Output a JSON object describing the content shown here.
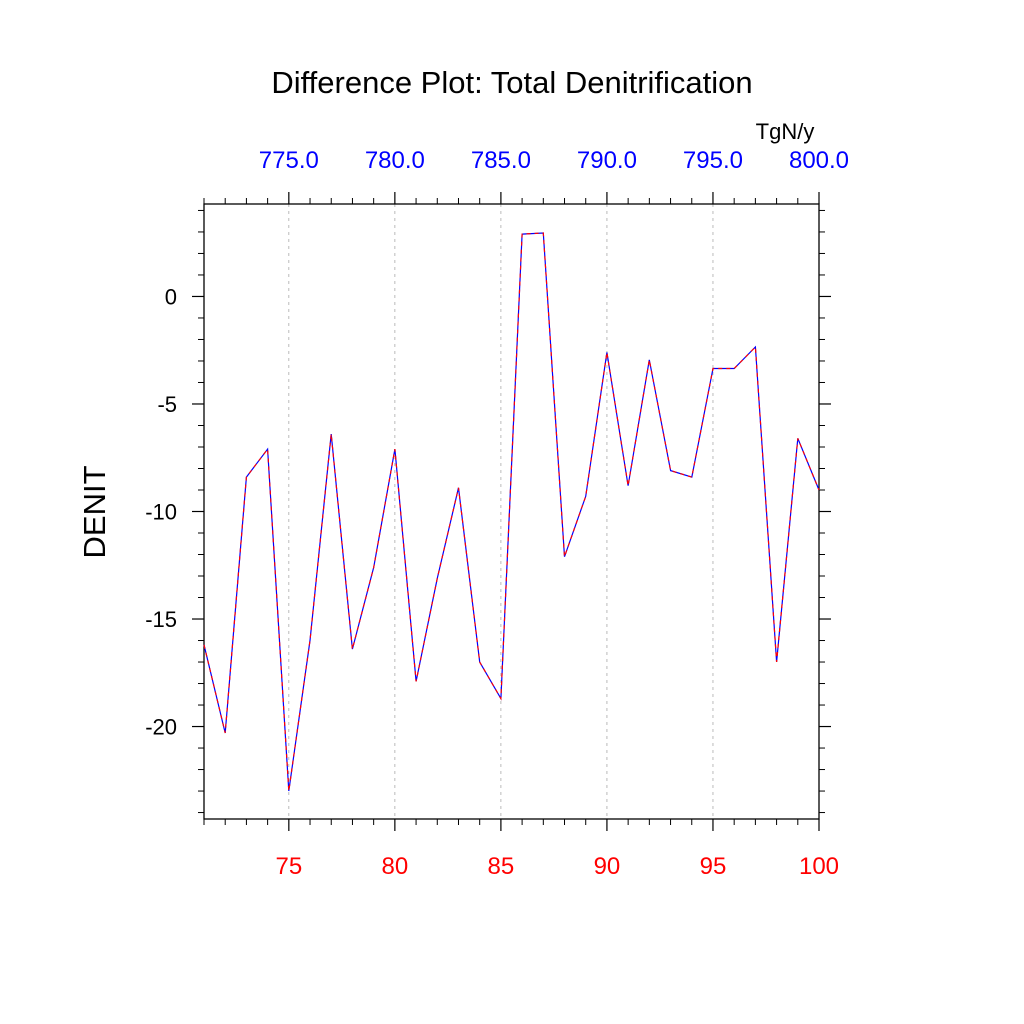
{
  "chart_data": {
    "type": "line",
    "title": "Difference Plot: Total Denitrification",
    "ylabel": "DENIT",
    "units": "TgN/y",
    "xlim": [
      71,
      100
    ],
    "ylim": [
      -24.3,
      4.3
    ],
    "x": [
      71,
      72,
      73,
      74,
      75,
      76,
      77,
      78,
      79,
      80,
      81,
      82,
      83,
      84,
      85,
      86,
      87,
      88,
      89,
      90,
      91,
      92,
      93,
      94,
      95,
      96,
      97,
      98,
      99,
      100
    ],
    "values": [
      -16.2,
      -20.3,
      -8.4,
      -7.1,
      -23.0,
      -16.0,
      -6.4,
      -16.4,
      -12.6,
      -7.1,
      -17.9,
      -13.1,
      -8.9,
      -17.0,
      -18.7,
      2.9,
      2.95,
      -12.1,
      -9.3,
      -2.6,
      -8.8,
      -2.95,
      -8.1,
      -8.4,
      -3.35,
      -3.35,
      -2.35,
      -17.0,
      -6.6,
      -9.0
    ],
    "y_ticks": [
      {
        "value": 0,
        "label": "0"
      },
      {
        "value": -5,
        "label": "-5"
      },
      {
        "value": -10,
        "label": "-10"
      },
      {
        "value": -15,
        "label": "-15"
      },
      {
        "value": -20,
        "label": "-20"
      }
    ],
    "x_ticks_bottom": [
      {
        "value": 75,
        "label": "75"
      },
      {
        "value": 80,
        "label": "80"
      },
      {
        "value": 85,
        "label": "85"
      },
      {
        "value": 90,
        "label": "90"
      },
      {
        "value": 95,
        "label": "95"
      },
      {
        "value": 100,
        "label": "100"
      }
    ],
    "x_ticks_top": [
      {
        "value": 75,
        "label": "775.0"
      },
      {
        "value": 80,
        "label": "780.0"
      },
      {
        "value": 85,
        "label": "785.0"
      },
      {
        "value": 90,
        "label": "790.0"
      },
      {
        "value": 95,
        "label": "795.0"
      },
      {
        "value": 100,
        "label": "800.0"
      }
    ],
    "grid": "vertical-dashed",
    "colors": {
      "line_primary": "#0000ff",
      "line_overlay": "#ff0000",
      "bottom_tick_labels": "#ff0000",
      "top_tick_labels": "#0000ff",
      "grid": "#aaaaaa",
      "axis": "#000000"
    }
  }
}
